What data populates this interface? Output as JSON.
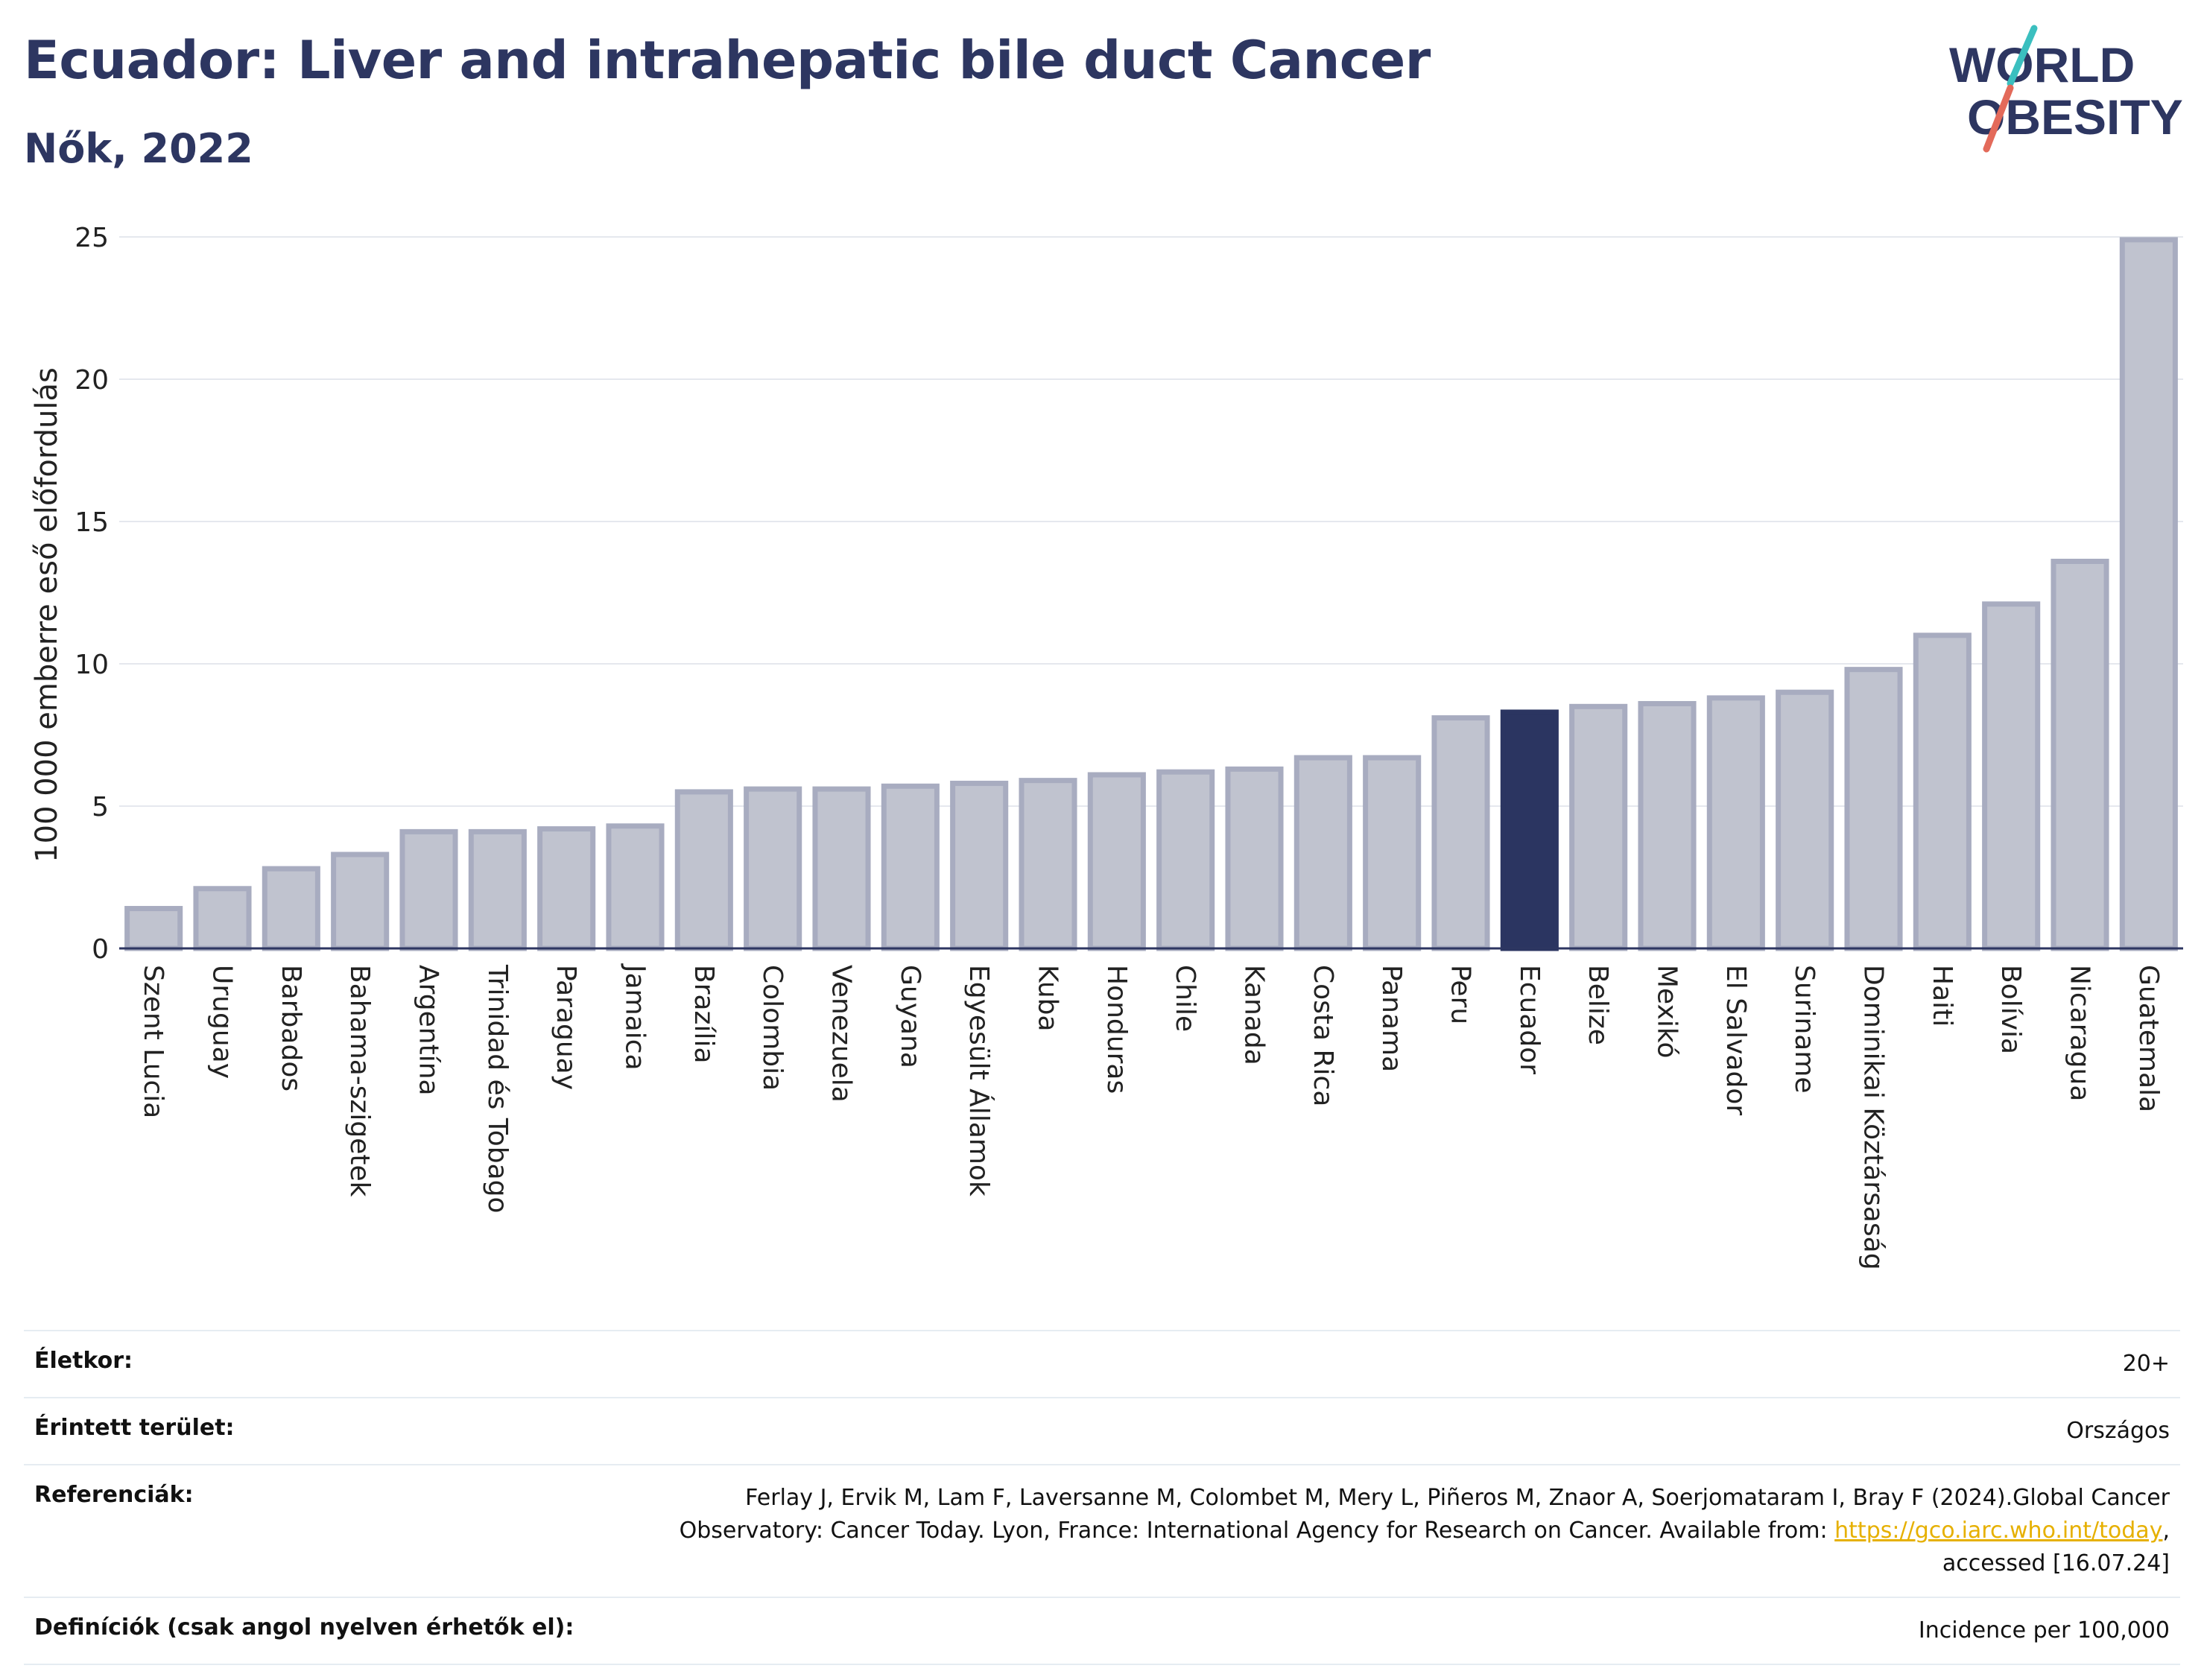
{
  "title": "Ecuador: Liver and intrahepatic bile duct Cancer",
  "subtitle": "Nők, 2022",
  "logo": {
    "line1": "WORLD",
    "line2": "OBESITY"
  },
  "colors": {
    "bar": "#c0c3cf",
    "bar_border": "#a8acc0",
    "highlight": "#2b3561",
    "text": "#2d3661",
    "link": "#e6b000"
  },
  "chart_data": {
    "type": "bar",
    "ylabel": "100 000 emberre eső előfordulás",
    "ylim": [
      0,
      25
    ],
    "yticks": [
      0,
      5,
      10,
      15,
      20,
      25
    ],
    "grid": true,
    "highlight": "Ecuador",
    "categories": [
      "Szent Lucia",
      "Uruguay",
      "Barbados",
      "Bahama-szigetek",
      "Argentína",
      "Trinidad és Tobago",
      "Paraguay",
      "Jamaica",
      "Brazília",
      "Colombia",
      "Venezuela",
      "Guyana",
      "Egyesült Államok",
      "Kuba",
      "Honduras",
      "Chile",
      "Kanada",
      "Costa Rica",
      "Panama",
      "Peru",
      "Ecuador",
      "Belize",
      "Mexikó",
      "El Salvador",
      "Suriname",
      "Dominikai Köztársaság",
      "Haiti",
      "Bolívia",
      "Nicaragua",
      "Guatemala"
    ],
    "values": [
      1.4,
      2.1,
      2.8,
      3.3,
      4.1,
      4.1,
      4.2,
      4.3,
      5.5,
      5.6,
      5.6,
      5.7,
      5.8,
      5.9,
      6.1,
      6.2,
      6.3,
      6.7,
      6.7,
      8.1,
      8.3,
      8.5,
      8.6,
      8.8,
      9.0,
      9.8,
      11.0,
      12.1,
      13.6,
      24.9
    ]
  },
  "info": {
    "age_label": "Életkor:",
    "age_value": "20+",
    "area_label": "Érintett terület:",
    "area_value": "Országos",
    "ref_label": "Referenciák:",
    "ref_line1": "Ferlay J, Ervik M, Lam F, Laversanne M, Colombet M, Mery L, Piñeros M, Znaor A, Soerjomataram I, Bray F (2024).Global Cancer",
    "ref_line2": "Observatory: Cancer Today. Lyon, France: International Agency for Research on Cancer. Available from: ",
    "ref_link": "https://gco.iarc.who.int/today",
    "ref_line2_end": ",",
    "ref_line3": "accessed [16.07.24]",
    "def_label": "Definíciók (csak angol nyelven érhetők el):",
    "def_value": "Incidence per 100,000"
  }
}
